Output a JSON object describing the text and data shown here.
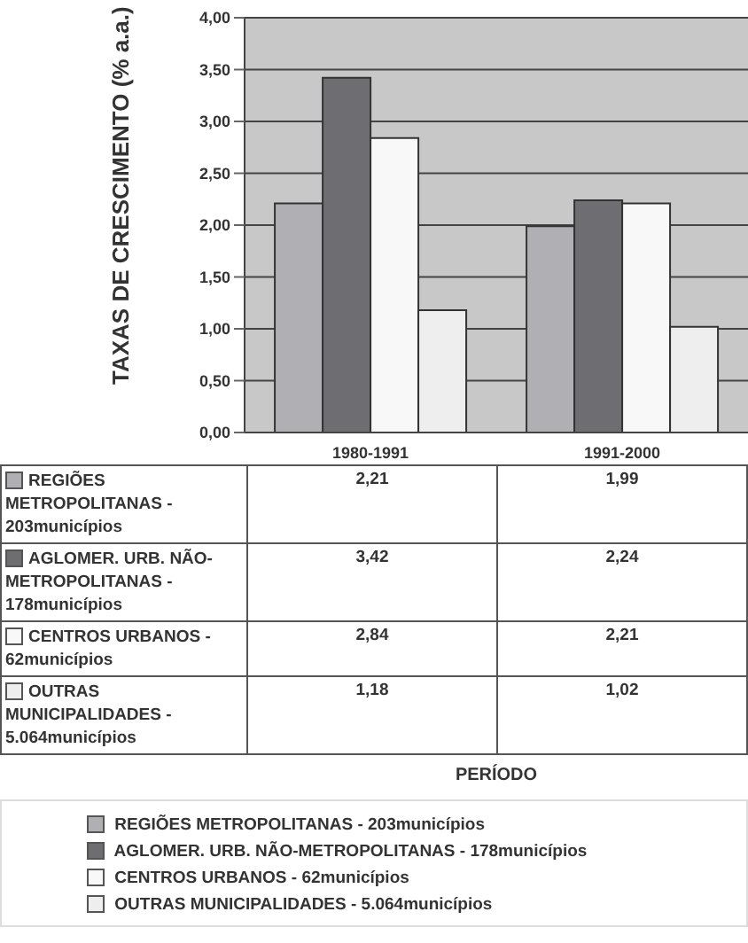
{
  "chart_data": {
    "type": "bar",
    "ylabel": "TAXAS DE CRESCIMENTO (% a.a.)",
    "annotations": [
      "PERÍODO"
    ],
    "categories": [
      "1980-1991",
      "1991-2000"
    ],
    "series": [
      {
        "name": "REGIÕES METROPOLITANAS - 203municípios",
        "color": "#b0b0b4",
        "values": [
          2.21,
          1.99
        ],
        "value_labels": [
          "2,21",
          "1,99"
        ]
      },
      {
        "name": "AGLOMER. URB. NÃO-METROPOLITANAS - 178municípios",
        "color": "#6e6e72",
        "values": [
          3.42,
          2.24
        ],
        "value_labels": [
          "3,42",
          "2,24"
        ]
      },
      {
        "name": "CENTROS URBANOS - 62municípios",
        "color": "#f8f8f8",
        "values": [
          2.84,
          2.21
        ],
        "value_labels": [
          "2,84",
          "2,21"
        ]
      },
      {
        "name": "OUTRAS MUNICIPALIDADES - 5.064municípios",
        "color": "#eeeeee",
        "values": [
          1.18,
          1.02
        ],
        "value_labels": [
          "1,18",
          "1,02"
        ]
      }
    ],
    "ylim": [
      0,
      4
    ],
    "yticks": [
      {
        "value": 0,
        "label": "0,00"
      },
      {
        "value": 0.5,
        "label": "0,50"
      },
      {
        "value": 1,
        "label": "1,00"
      },
      {
        "value": 1.5,
        "label": "1,50"
      },
      {
        "value": 2,
        "label": "2,00"
      },
      {
        "value": 2.5,
        "label": "2,50"
      },
      {
        "value": 3,
        "label": "3,00"
      },
      {
        "value": 3.5,
        "label": "3,50"
      },
      {
        "value": 4,
        "label": "4,00"
      }
    ],
    "grid": "y",
    "legend": "bottom"
  }
}
